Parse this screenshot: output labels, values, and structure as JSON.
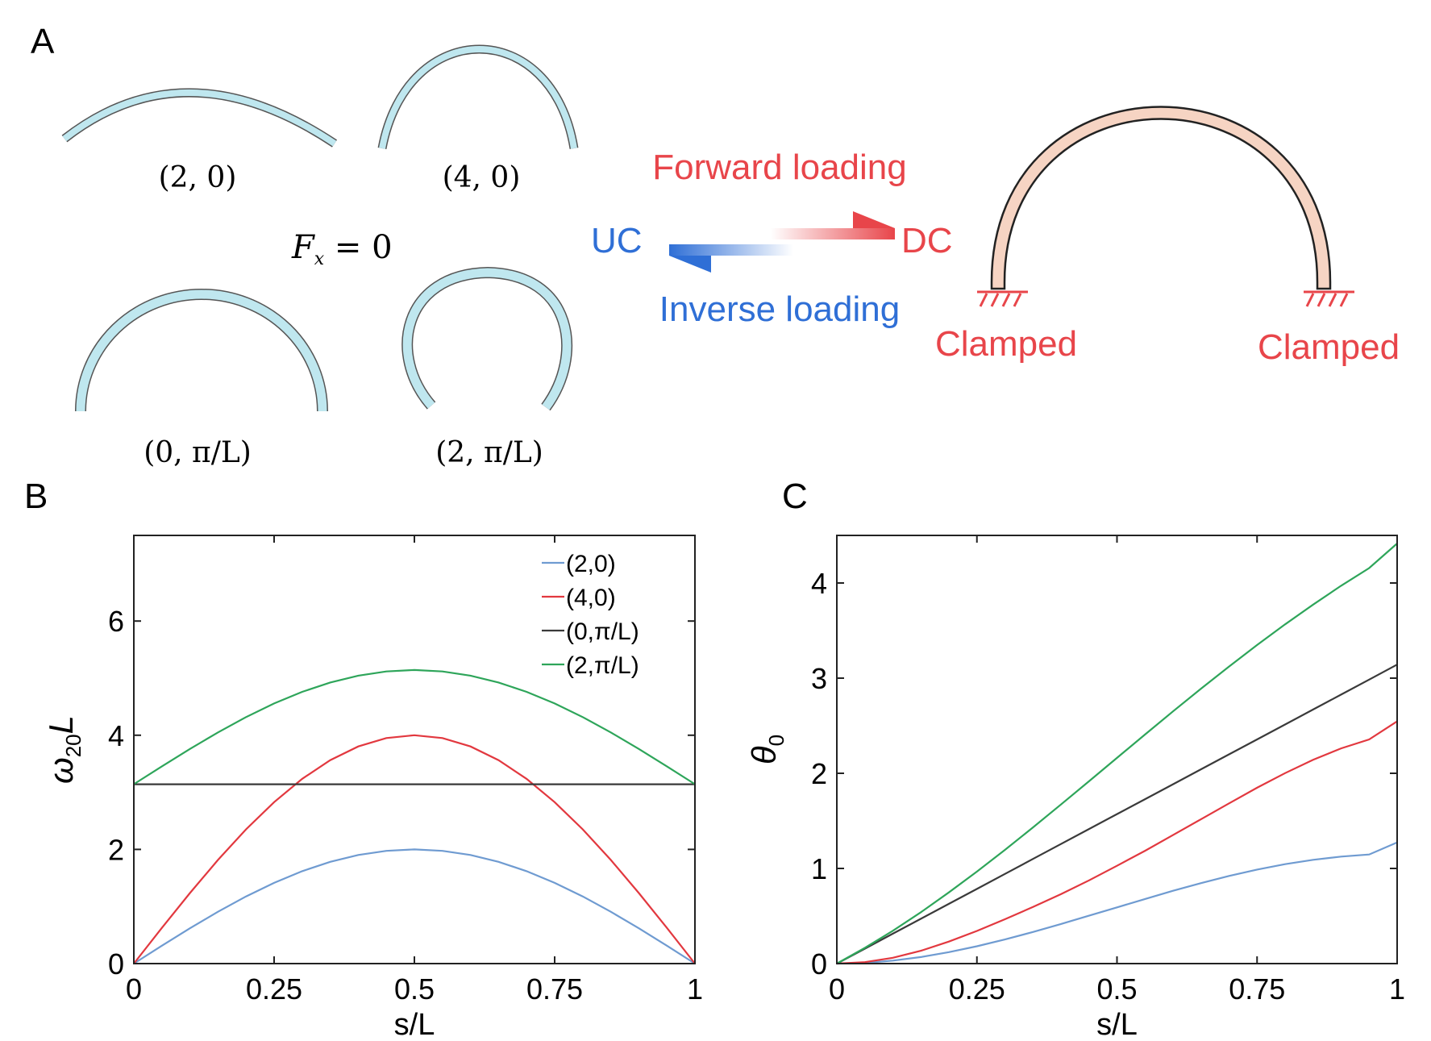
{
  "panels": {
    "a": "A",
    "b": "B",
    "c": "C"
  },
  "colors": {
    "blue": "#6f9bd1",
    "red": "#e2383f",
    "black": "#3a3a3a",
    "green": "#2ea55a",
    "text_red": "#e8454a",
    "text_blue": "#2f6fd6",
    "arch_fill": "#f6d4c3",
    "strip_fill": "#bfe7ef"
  },
  "schematic": {
    "shape_labels": [
      "(2, 0)",
      "(4, 0)",
      "(0, π/L)",
      "(2, π/L)"
    ],
    "fx_label": "F",
    "fx_sub": "x",
    "fx_rest": " = 0",
    "forward": "Forward loading",
    "inverse": "Inverse loading",
    "uc": "UC",
    "dc": "DC",
    "clamped_left": "Clamped",
    "clamped_right": "Clamped"
  },
  "chart_data": [
    {
      "id": "B",
      "type": "line",
      "xlabel": "s/L",
      "ylabel_main": "ω",
      "ylabel_sub": "20",
      "ylabel_tail": "L",
      "xlim": [
        0,
        1
      ],
      "ylim": [
        0,
        7.5
      ],
      "xticks": [
        0,
        0.25,
        0.5,
        0.75,
        1
      ],
      "xtick_labels": [
        "0",
        "0.25",
        "0.5",
        "0.75",
        "1"
      ],
      "yticks": [
        0,
        2,
        4,
        6
      ],
      "ytick_labels": [
        "0",
        "2",
        "4",
        "6"
      ],
      "legend_position": "top-right",
      "x": [
        0,
        0.05,
        0.1,
        0.15,
        0.2,
        0.25,
        0.3,
        0.35,
        0.4,
        0.45,
        0.5,
        0.55,
        0.6,
        0.65,
        0.7,
        0.75,
        0.8,
        0.85,
        0.9,
        0.95,
        1
      ],
      "series": [
        {
          "name": "(2,0)",
          "color": "#6f9bd1",
          "values": [
            0,
            0.313,
            0.618,
            0.908,
            1.176,
            1.414,
            1.618,
            1.782,
            1.902,
            1.975,
            2.0,
            1.975,
            1.902,
            1.782,
            1.618,
            1.414,
            1.176,
            0.908,
            0.618,
            0.313,
            0
          ]
        },
        {
          "name": "(4,0)",
          "color": "#e2383f",
          "values": [
            0,
            0.626,
            1.236,
            1.816,
            2.351,
            2.828,
            3.236,
            3.564,
            3.804,
            3.951,
            4.0,
            3.951,
            3.804,
            3.564,
            3.236,
            2.828,
            2.351,
            1.816,
            1.236,
            0.626,
            0
          ]
        },
        {
          "name": "(0,π/L)",
          "color": "#3a3a3a",
          "values": [
            3.1416,
            3.1416,
            3.1416,
            3.1416,
            3.1416,
            3.1416,
            3.1416,
            3.1416,
            3.1416,
            3.1416,
            3.1416,
            3.1416,
            3.1416,
            3.1416,
            3.1416,
            3.1416,
            3.1416,
            3.1416,
            3.1416,
            3.1416,
            3.1416
          ]
        },
        {
          "name": "(2,π/L)",
          "color": "#2ea55a",
          "values": [
            3.142,
            3.455,
            3.76,
            4.05,
            4.318,
            4.556,
            4.76,
            4.924,
            5.044,
            5.117,
            5.142,
            5.117,
            5.044,
            4.924,
            4.76,
            4.556,
            4.318,
            4.05,
            3.76,
            3.455,
            3.142
          ]
        }
      ]
    },
    {
      "id": "C",
      "type": "line",
      "xlabel": "s/L",
      "ylabel_main": "θ",
      "ylabel_sub": "0",
      "ylabel_tail": "",
      "xlim": [
        0,
        1
      ],
      "ylim": [
        0,
        4.5
      ],
      "xticks": [
        0,
        0.25,
        0.5,
        0.75,
        1
      ],
      "xtick_labels": [
        "0",
        "0.25",
        "0.5",
        "0.75",
        "1"
      ],
      "yticks": [
        0,
        1,
        2,
        3,
        4
      ],
      "ytick_labels": [
        "0",
        "1",
        "2",
        "3",
        "4"
      ],
      "legend_position": "none",
      "x": [
        0,
        0.05,
        0.1,
        0.15,
        0.2,
        0.25,
        0.3,
        0.35,
        0.4,
        0.45,
        0.5,
        0.55,
        0.6,
        0.65,
        0.7,
        0.75,
        0.8,
        0.85,
        0.9,
        0.95,
        1
      ],
      "series": [
        {
          "name": "(2,0)",
          "color": "#6f9bd1",
          "values": [
            0,
            0.008,
            0.031,
            0.069,
            0.12,
            0.182,
            0.253,
            0.332,
            0.416,
            0.503,
            0.591,
            0.679,
            0.765,
            0.846,
            0.921,
            0.988,
            1.045,
            1.091,
            1.125,
            1.147,
            1.273
          ]
        },
        {
          "name": "(4,0)",
          "color": "#e2383f",
          "values": [
            0,
            0.015,
            0.061,
            0.135,
            0.231,
            0.343,
            0.466,
            0.595,
            0.73,
            0.875,
            1.028,
            1.186,
            1.351,
            1.518,
            1.684,
            1.848,
            2.002,
            2.142,
            2.262,
            2.356,
            2.546
          ]
        },
        {
          "name": "(0,π/L)",
          "color": "#3a3a3a",
          "values": [
            0,
            0.157,
            0.314,
            0.471,
            0.628,
            0.785,
            0.942,
            1.1,
            1.257,
            1.414,
            1.571,
            1.728,
            1.885,
            2.042,
            2.199,
            2.356,
            2.513,
            2.67,
            2.827,
            2.985,
            3.142
          ]
        },
        {
          "name": "(2,π/L)",
          "color": "#2ea55a",
          "values": [
            0,
            0.165,
            0.345,
            0.54,
            0.748,
            0.967,
            1.195,
            1.431,
            1.672,
            1.916,
            2.162,
            2.408,
            2.651,
            2.89,
            3.122,
            3.348,
            3.565,
            3.773,
            3.971,
            4.157,
            4.415
          ]
        }
      ]
    }
  ]
}
